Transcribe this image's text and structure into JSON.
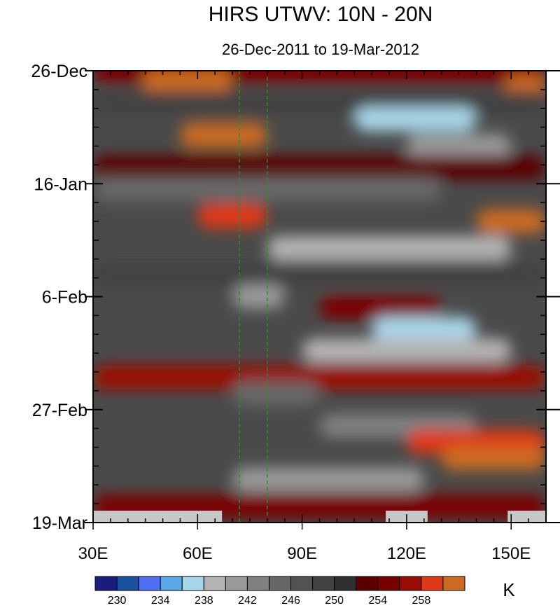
{
  "chart_data": {
    "type": "heatmap",
    "title": "HIRS UTWV: 10N - 20N",
    "subtitle": "26-Dec-2011 to 19-Mar-2012",
    "x_axis": {
      "range": [
        30,
        160
      ],
      "ticks": [
        30,
        60,
        90,
        120,
        150
      ],
      "tick_labels": [
        "30E",
        "60E",
        "90E",
        "120E",
        "150E"
      ]
    },
    "y_axis": {
      "range_days": [
        0,
        84
      ],
      "ticks_days": [
        0,
        21,
        42,
        63,
        84
      ],
      "tick_labels": [
        "26-Dec",
        "16-Jan",
        "6-Feb",
        "27-Feb",
        "19-Mar"
      ],
      "direction": "down"
    },
    "reference_lines": {
      "style": "dashed",
      "color": "#2e8b2e",
      "longitudes": [
        72,
        80
      ]
    },
    "missing_data_color": "#c8c8c8",
    "missing_segments": [
      {
        "lon_start": 30,
        "lon_end": 67,
        "day_start": 81.8,
        "day_end": 84
      },
      {
        "lon_start": 114,
        "lon_end": 126,
        "day_start": 81.8,
        "day_end": 84
      },
      {
        "lon_start": 149,
        "lon_end": 160,
        "day_start": 81.8,
        "day_end": 84
      }
    ],
    "colorbar": {
      "unit": "K",
      "colors": [
        "#1a1e7a",
        "#1b4fa0",
        "#4f6ff5",
        "#5aa8e8",
        "#a8d6e8",
        "#b4b4b4",
        "#999999",
        "#808080",
        "#676767",
        "#525252",
        "#424242",
        "#2f2f2f",
        "#5a0000",
        "#7a0000",
        "#9a0c06",
        "#e03818",
        "#cc6a22"
      ],
      "boundaries": [
        230,
        232,
        234,
        236,
        238,
        240,
        242,
        244,
        246,
        248,
        250,
        252,
        254,
        256,
        258,
        260
      ],
      "labels": [
        "230",
        "234",
        "238",
        "242",
        "246",
        "250",
        "254",
        "258"
      ],
      "label_values": [
        230,
        234,
        238,
        242,
        246,
        250,
        254,
        258
      ]
    },
    "field_bands": [
      {
        "day": 0,
        "lon_start": 30,
        "lon_end": 160,
        "value": 254
      },
      {
        "day": 2,
        "lon_start": 44,
        "lon_end": 70,
        "value": 260
      },
      {
        "day": 3,
        "lon_start": 148,
        "lon_end": 160,
        "value": 262
      },
      {
        "day": 6,
        "lon_start": 30,
        "lon_end": 160,
        "value": 249
      },
      {
        "day": 9,
        "lon_start": 105,
        "lon_end": 140,
        "value": 236
      },
      {
        "day": 12,
        "lon_start": 55,
        "lon_end": 80,
        "value": 260
      },
      {
        "day": 14,
        "lon_start": 120,
        "lon_end": 150,
        "value": 240
      },
      {
        "day": 18,
        "lon_start": 30,
        "lon_end": 160,
        "value": 253
      },
      {
        "day": 22,
        "lon_start": 30,
        "lon_end": 130,
        "value": 245
      },
      {
        "day": 27,
        "lon_start": 60,
        "lon_end": 80,
        "value": 259
      },
      {
        "day": 28,
        "lon_start": 140,
        "lon_end": 160,
        "value": 261
      },
      {
        "day": 33,
        "lon_start": 80,
        "lon_end": 150,
        "value": 239
      },
      {
        "day": 38,
        "lon_start": 30,
        "lon_end": 160,
        "value": 248
      },
      {
        "day": 42,
        "lon_start": 70,
        "lon_end": 85,
        "value": 240
      },
      {
        "day": 44,
        "lon_start": 95,
        "lon_end": 130,
        "value": 254
      },
      {
        "day": 48,
        "lon_start": 110,
        "lon_end": 140,
        "value": 236
      },
      {
        "day": 52,
        "lon_start": 90,
        "lon_end": 150,
        "value": 238
      },
      {
        "day": 57,
        "lon_start": 30,
        "lon_end": 160,
        "value": 256
      },
      {
        "day": 60,
        "lon_start": 70,
        "lon_end": 95,
        "value": 244
      },
      {
        "day": 66,
        "lon_start": 95,
        "lon_end": 140,
        "value": 243
      },
      {
        "day": 69,
        "lon_start": 120,
        "lon_end": 160,
        "value": 258
      },
      {
        "day": 72,
        "lon_start": 130,
        "lon_end": 160,
        "value": 262
      },
      {
        "day": 76,
        "lon_start": 70,
        "lon_end": 125,
        "value": 240
      },
      {
        "day": 81,
        "lon_start": 30,
        "lon_end": 160,
        "value": 254
      }
    ]
  }
}
